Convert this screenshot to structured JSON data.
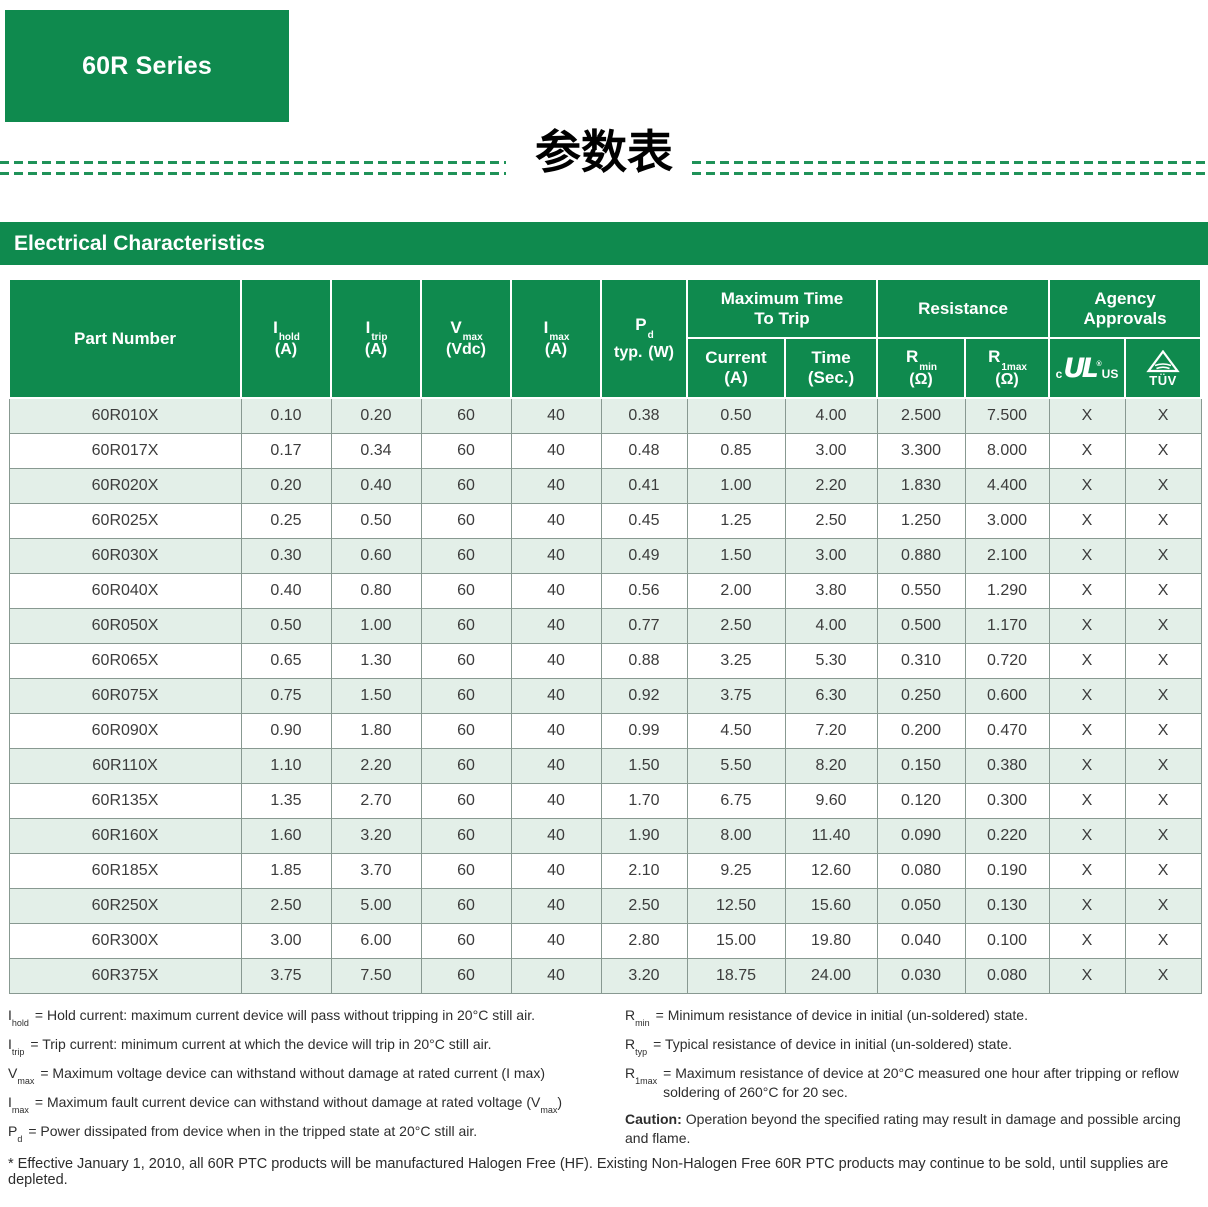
{
  "page": {
    "series_badge": "60R Series",
    "title_cn": "参数表",
    "section_title": "Electrical Characteristics"
  },
  "colors": {
    "brand_green": "#0f8a4e",
    "row_stripe": "#e3efe8",
    "dash_green": "#1f9258"
  },
  "table": {
    "header": {
      "part_number": "Part Number",
      "i_hold": {
        "sym": "I",
        "sub": "hold",
        "unit": "(A)"
      },
      "i_trip": {
        "sym": "I",
        "sub": "trip",
        "unit": "(A)"
      },
      "v_max": {
        "sym": "V",
        "sub": "max",
        "unit": "(Vdc)"
      },
      "i_max": {
        "sym": "I",
        "sub": "max",
        "unit": "(A)"
      },
      "p_d": {
        "sym": "P",
        "sub": "d",
        "typ": "typ.",
        "unit": "(W)"
      },
      "group_time": {
        "line1": "Maximum Time",
        "line2": "To Trip"
      },
      "group_resistance": "Resistance",
      "group_agency": {
        "line1": "Agency",
        "line2": "Approvals"
      },
      "current": {
        "line1": "Current",
        "line2": "(A)"
      },
      "time": {
        "line1": "Time",
        "line2": "(Sec.)"
      },
      "r_min": {
        "sym": "R",
        "sub": "min",
        "unit": "(Ω)"
      },
      "r_1max": {
        "sym": "R",
        "sub": "1max",
        "unit": "(Ω)"
      },
      "ul_mark": {
        "c": "c",
        "mark": "UL",
        "reg": "®",
        "us": "US"
      },
      "tuv_mark": {
        "label": "TÜV"
      }
    },
    "rows": [
      [
        "60R010X",
        "0.10",
        "0.20",
        "60",
        "40",
        "0.38",
        "0.50",
        "4.00",
        "2.500",
        "7.500",
        "X",
        "X"
      ],
      [
        "60R017X",
        "0.17",
        "0.34",
        "60",
        "40",
        "0.48",
        "0.85",
        "3.00",
        "3.300",
        "8.000",
        "X",
        "X"
      ],
      [
        "60R020X",
        "0.20",
        "0.40",
        "60",
        "40",
        "0.41",
        "1.00",
        "2.20",
        "1.830",
        "4.400",
        "X",
        "X"
      ],
      [
        "60R025X",
        "0.25",
        "0.50",
        "60",
        "40",
        "0.45",
        "1.25",
        "2.50",
        "1.250",
        "3.000",
        "X",
        "X"
      ],
      [
        "60R030X",
        "0.30",
        "0.60",
        "60",
        "40",
        "0.49",
        "1.50",
        "3.00",
        "0.880",
        "2.100",
        "X",
        "X"
      ],
      [
        "60R040X",
        "0.40",
        "0.80",
        "60",
        "40",
        "0.56",
        "2.00",
        "3.80",
        "0.550",
        "1.290",
        "X",
        "X"
      ],
      [
        "60R050X",
        "0.50",
        "1.00",
        "60",
        "40",
        "0.77",
        "2.50",
        "4.00",
        "0.500",
        "1.170",
        "X",
        "X"
      ],
      [
        "60R065X",
        "0.65",
        "1.30",
        "60",
        "40",
        "0.88",
        "3.25",
        "5.30",
        "0.310",
        "0.720",
        "X",
        "X"
      ],
      [
        "60R075X",
        "0.75",
        "1.50",
        "60",
        "40",
        "0.92",
        "3.75",
        "6.30",
        "0.250",
        "0.600",
        "X",
        "X"
      ],
      [
        "60R090X",
        "0.90",
        "1.80",
        "60",
        "40",
        "0.99",
        "4.50",
        "7.20",
        "0.200",
        "0.470",
        "X",
        "X"
      ],
      [
        "60R110X",
        "1.10",
        "2.20",
        "60",
        "40",
        "1.50",
        "5.50",
        "8.20",
        "0.150",
        "0.380",
        "X",
        "X"
      ],
      [
        "60R135X",
        "1.35",
        "2.70",
        "60",
        "40",
        "1.70",
        "6.75",
        "9.60",
        "0.120",
        "0.300",
        "X",
        "X"
      ],
      [
        "60R160X",
        "1.60",
        "3.20",
        "60",
        "40",
        "1.90",
        "8.00",
        "11.40",
        "0.090",
        "0.220",
        "X",
        "X"
      ],
      [
        "60R185X",
        "1.85",
        "3.70",
        "60",
        "40",
        "2.10",
        "9.25",
        "12.60",
        "0.080",
        "0.190",
        "X",
        "X"
      ],
      [
        "60R250X",
        "2.50",
        "5.00",
        "60",
        "40",
        "2.50",
        "12.50",
        "15.60",
        "0.050",
        "0.130",
        "X",
        "X"
      ],
      [
        "60R300X",
        "3.00",
        "6.00",
        "60",
        "40",
        "2.80",
        "15.00",
        "19.80",
        "0.040",
        "0.100",
        "X",
        "X"
      ],
      [
        "60R375X",
        "3.75",
        "7.50",
        "60",
        "40",
        "3.20",
        "18.75",
        "24.00",
        "0.030",
        "0.080",
        "X",
        "X"
      ]
    ]
  },
  "footnotes_left": [
    {
      "lead": "I",
      "lead_sub": "hold",
      "text": "= Hold current: maximum current device will pass without tripping in 20°C still air."
    },
    {
      "lead": "I",
      "lead_sub": "trip",
      "text": "= Trip current: minimum current at which the device will trip in 20°C still air."
    },
    {
      "lead": "V",
      "lead_sub": "max",
      "text": "= Maximum voltage device can withstand without damage at rated current (I max)"
    },
    {
      "lead": "I",
      "lead_sub": "max",
      "text": "= Maximum fault current device can withstand without damage at rated voltage (V_{max})"
    },
    {
      "lead": "P",
      "lead_sub": "d",
      "text": "= Power dissipated from device when in the tripped state at 20°C still air."
    }
  ],
  "footnotes_right": [
    {
      "lead": "R",
      "lead_sub": "min",
      "text": "= Minimum resistance of device in initial (un-soldered) state."
    },
    {
      "lead": "R",
      "lead_sub": "typ",
      "text": "= Typical resistance of device in initial (un-soldered) state."
    },
    {
      "lead": "R",
      "lead_sub": "1max",
      "text": "= Maximum resistance of device at 20°C measured one hour after tripping or reflow soldering of 260°C for 20 sec."
    },
    {
      "lead": "Caution:",
      "lead_bold": true,
      "flow": true,
      "text": "Operation beyond the specified rating may result in damage and possible arcing and flame."
    }
  ],
  "bottom_note": "* Effective January 1, 2010, all 60R PTC products will be manufactured Halogen Free (HF). Existing Non-Halogen Free 60R PTC products may continue to be sold, until supplies are depleted."
}
